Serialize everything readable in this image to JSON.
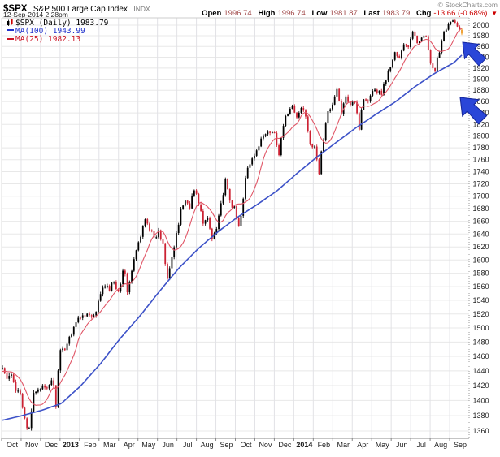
{
  "header": {
    "symbol": "$SPX",
    "name": "S&P 500 Large Cap Index",
    "exchange": "INDX",
    "timestamp": "12-Sep-2014 2:28pm",
    "copyright": "© StockCharts.com"
  },
  "quote": {
    "open_label": "Open",
    "open": "1996.74",
    "high_label": "High",
    "high": "1996.74",
    "low_label": "Low",
    "low": "1981.87",
    "last_label": "Last",
    "last": "1983.79",
    "chg_label": "Chg",
    "chg": "-13.66 (-0.68%)",
    "direction_icon": "▼"
  },
  "legend": {
    "series": "$SPX (Daily) 1983.79",
    "ma100": "MA(100) 1943.99",
    "ma25": "MA(25) 1982.13"
  },
  "chart_data": {
    "type": "candlestick",
    "title": "$SPX S&P 500 Large Cap Index (Daily)",
    "last_price": 1983.79,
    "grid": true,
    "legend_position": "top-left",
    "x_labels": [
      "Oct",
      "Nov",
      "Dec",
      "2013",
      "Feb",
      "Mar",
      "Apr",
      "May",
      "Jun",
      "Jul",
      "Aug",
      "Sep",
      "Oct",
      "Nov",
      "Dec",
      "2014",
      "Feb",
      "Mar",
      "Apr",
      "May",
      "Jun",
      "Jul",
      "Aug",
      "Sep"
    ],
    "bold_x_labels": [
      "2013",
      "2014"
    ],
    "y_axis": {
      "scale": "log",
      "tick_min": 1360,
      "tick_max": 2000,
      "tick_step": 20,
      "view_min": 1350,
      "view_max": 2014
    },
    "months_spanned": 23.4,
    "weekly_close": [
      1444,
      1429,
      1433,
      1412,
      1414,
      1380,
      1353,
      1409,
      1416,
      1418,
      1413,
      1430,
      1402,
      1466,
      1472,
      1486,
      1503,
      1513,
      1518,
      1520,
      1516,
      1518,
      1551,
      1561,
      1557,
      1569,
      1553,
      1589,
      1555,
      1582,
      1614,
      1634,
      1667,
      1650,
      1631,
      1643,
      1627,
      1578,
      1606,
      1632,
      1680,
      1692,
      1686,
      1710,
      1691,
      1656,
      1664,
      1633,
      1655,
      1688,
      1722,
      1692,
      1678,
      1650,
      1703,
      1745,
      1760,
      1771,
      1798,
      1805,
      1806,
      1805,
      1775,
      1818,
      1841,
      1848,
      1831,
      1849,
      1839,
      1790,
      1775,
      1742,
      1797,
      1839,
      1859,
      1878,
      1841,
      1866,
      1857,
      1865,
      1816,
      1865,
      1863,
      1881,
      1878,
      1877,
      1901,
      1924,
      1949,
      1936,
      1963,
      1961,
      1985,
      1967,
      1978,
      1978,
      1925,
      1909,
      1955,
      1988,
      2003,
      2008,
      1996,
      1984
    ],
    "series": [
      {
        "name": "MA(100)",
        "value_at_end": 1943.99,
        "color": "#3d52c8",
        "anchors_by_month": [
          [
            0,
            1374
          ],
          [
            1,
            1380
          ],
          [
            2,
            1387
          ],
          [
            3,
            1396
          ],
          [
            4,
            1420
          ],
          [
            5,
            1450
          ],
          [
            6,
            1485
          ],
          [
            7,
            1517
          ],
          [
            8,
            1553
          ],
          [
            9,
            1588
          ],
          [
            10,
            1618
          ],
          [
            11,
            1644
          ],
          [
            12,
            1667
          ],
          [
            13,
            1687
          ],
          [
            14,
            1709
          ],
          [
            15,
            1737
          ],
          [
            16,
            1764
          ],
          [
            17,
            1789
          ],
          [
            18,
            1814
          ],
          [
            19,
            1837
          ],
          [
            20,
            1859
          ],
          [
            21,
            1886
          ],
          [
            22,
            1910
          ],
          [
            23,
            1930
          ],
          [
            23.4,
            1944
          ]
        ]
      },
      {
        "name": "MA(25)",
        "value_at_end": 1982.13,
        "color": "#e05566",
        "window_days": 25,
        "start_value": 1432
      }
    ],
    "colors": {
      "up": "#000000",
      "down": "#cc2233",
      "last_candle": "#ee9922",
      "grid": "#e8e8e8",
      "grid_vert": "#e2e2e6",
      "axis": "#888888",
      "label": "#222222",
      "border_dotted": "#999999"
    },
    "annotations": [
      {
        "name": "arrow-to-last-price",
        "shape": "arrow-northwest",
        "x": 569,
        "y": 52,
        "scale": 1.15,
        "color": "#2a46d8"
      },
      {
        "name": "arrow-to-ma100",
        "shape": "arrow-northwest",
        "x": 566,
        "y": 120,
        "scale": 1.3,
        "color": "#2a46d8"
      }
    ]
  }
}
